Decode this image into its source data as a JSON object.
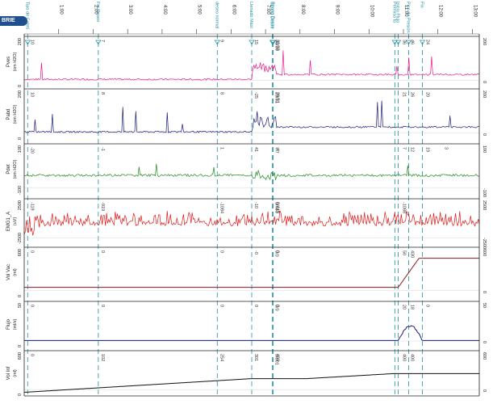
{
  "logo": {
    "text": "BRIE",
    "color": "#1f4f8f"
  },
  "chart_data": {
    "type": "line",
    "time_ticks": [
      "1:00",
      "2:00",
      "3:00",
      "4:00",
      "5:00",
      "6:00",
      "7:00",
      "8:00",
      "9:00",
      "10:00",
      "11:00",
      "12:00",
      "13:00"
    ],
    "events": [
      {
        "label": "Tipo de Cateti",
        "t": 0.1
      },
      {
        "label": "Fin Deseo",
        "t": 2.15
      },
      {
        "label": "deseo normal",
        "t": 5.6
      },
      {
        "label": "Llenado Máxi",
        "t": 6.6
      },
      {
        "label": "Strong Desire",
        "t": 7.2
      },
      {
        "label": "Strong Desire",
        "t": 7.22
      },
      {
        "label": "Permiso to",
        "t": 10.75
      },
      {
        "label": "Inicio Flujo",
        "t": 10.85
      },
      {
        "label": "Pico de Presión",
        "t": 11.15
      },
      {
        "label": "Fin",
        "t": 11.55
      }
    ],
    "panels": [
      {
        "name": "Pves",
        "unit": "(cm H2O)",
        "color": "#e8168a",
        "ymax": "200",
        "ymin": "0",
        "labels": [
          "10",
          "7",
          "9",
          "15",
          "38/39",
          "32/33",
          "36",
          "46",
          "24"
        ]
      },
      {
        "name": "Pabd",
        "unit": "(cm H2O)",
        "color": "#1a1a7a",
        "ymax": "200",
        "ymin": "0",
        "labels": [
          "10",
          "8",
          "8",
          "-25",
          "29/31",
          "29/31",
          "21",
          "26",
          "20"
        ]
      },
      {
        "name": "Pdet",
        "unit": "(cm H2O)",
        "color": "#1e8a1e",
        "ymax": "100",
        "ymin": "-100",
        "labels": [
          "-20",
          "-1",
          "1",
          "41",
          "7/7",
          "-4",
          "7",
          "12",
          "19",
          "3"
        ]
      },
      {
        "name": "EMG1_A",
        "unit": "(uV)",
        "color": "#e01818",
        "ymax": "2500",
        "ymin": "-2500",
        "labels": [
          "-119",
          "-919",
          "-1084",
          "-10",
          "0/683",
          "0/419",
          "-1088"
        ]
      },
      {
        "name": "Vol Vac",
        "unit": "(ml)",
        "color": "#8b1a1a",
        "ymax": "600",
        "ymin": "0",
        "labels": [
          "0",
          "0",
          "0",
          "-0",
          "0/0",
          "0",
          "50",
          "430"
        ]
      },
      {
        "name": "Flujo",
        "unit": "(ml/s)",
        "color": "#1a1a7a",
        "ymax": "50",
        "ymin": "0",
        "labels": [
          "0",
          "0",
          "0",
          "0",
          "0/0",
          "0",
          "20",
          "18",
          "0"
        ]
      },
      {
        "name": "Vol Inf",
        "unit": "(ml)",
        "color": "#111111",
        "ymax": "600",
        "ymin": "0",
        "labels": [
          "0",
          "102",
          "254",
          "301",
          "0/001",
          "450",
          "400",
          "400"
        ]
      }
    ]
  }
}
